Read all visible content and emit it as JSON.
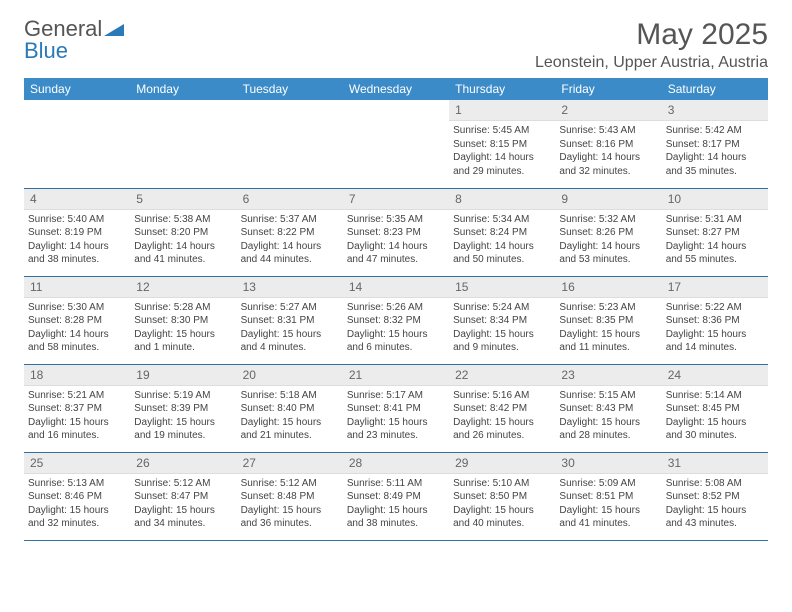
{
  "logo": {
    "word1": "General",
    "word2": "Blue"
  },
  "title": "May 2025",
  "location": "Leonstein, Upper Austria, Austria",
  "colors": {
    "header_bg": "#3b8bc8",
    "header_text": "#ffffff",
    "daynum_bg": "#ececec",
    "rule": "#2f6fa3",
    "text": "#444444",
    "title_text": "#555555"
  },
  "weekdays": [
    "Sunday",
    "Monday",
    "Tuesday",
    "Wednesday",
    "Thursday",
    "Friday",
    "Saturday"
  ],
  "weeks": [
    [
      {
        "n": "",
        "sr": "",
        "ss": "",
        "dl": ""
      },
      {
        "n": "",
        "sr": "",
        "ss": "",
        "dl": ""
      },
      {
        "n": "",
        "sr": "",
        "ss": "",
        "dl": ""
      },
      {
        "n": "",
        "sr": "",
        "ss": "",
        "dl": ""
      },
      {
        "n": "1",
        "sr": "Sunrise: 5:45 AM",
        "ss": "Sunset: 8:15 PM",
        "dl": "Daylight: 14 hours and 29 minutes."
      },
      {
        "n": "2",
        "sr": "Sunrise: 5:43 AM",
        "ss": "Sunset: 8:16 PM",
        "dl": "Daylight: 14 hours and 32 minutes."
      },
      {
        "n": "3",
        "sr": "Sunrise: 5:42 AM",
        "ss": "Sunset: 8:17 PM",
        "dl": "Daylight: 14 hours and 35 minutes."
      }
    ],
    [
      {
        "n": "4",
        "sr": "Sunrise: 5:40 AM",
        "ss": "Sunset: 8:19 PM",
        "dl": "Daylight: 14 hours and 38 minutes."
      },
      {
        "n": "5",
        "sr": "Sunrise: 5:38 AM",
        "ss": "Sunset: 8:20 PM",
        "dl": "Daylight: 14 hours and 41 minutes."
      },
      {
        "n": "6",
        "sr": "Sunrise: 5:37 AM",
        "ss": "Sunset: 8:22 PM",
        "dl": "Daylight: 14 hours and 44 minutes."
      },
      {
        "n": "7",
        "sr": "Sunrise: 5:35 AM",
        "ss": "Sunset: 8:23 PM",
        "dl": "Daylight: 14 hours and 47 minutes."
      },
      {
        "n": "8",
        "sr": "Sunrise: 5:34 AM",
        "ss": "Sunset: 8:24 PM",
        "dl": "Daylight: 14 hours and 50 minutes."
      },
      {
        "n": "9",
        "sr": "Sunrise: 5:32 AM",
        "ss": "Sunset: 8:26 PM",
        "dl": "Daylight: 14 hours and 53 minutes."
      },
      {
        "n": "10",
        "sr": "Sunrise: 5:31 AM",
        "ss": "Sunset: 8:27 PM",
        "dl": "Daylight: 14 hours and 55 minutes."
      }
    ],
    [
      {
        "n": "11",
        "sr": "Sunrise: 5:30 AM",
        "ss": "Sunset: 8:28 PM",
        "dl": "Daylight: 14 hours and 58 minutes."
      },
      {
        "n": "12",
        "sr": "Sunrise: 5:28 AM",
        "ss": "Sunset: 8:30 PM",
        "dl": "Daylight: 15 hours and 1 minute."
      },
      {
        "n": "13",
        "sr": "Sunrise: 5:27 AM",
        "ss": "Sunset: 8:31 PM",
        "dl": "Daylight: 15 hours and 4 minutes."
      },
      {
        "n": "14",
        "sr": "Sunrise: 5:26 AM",
        "ss": "Sunset: 8:32 PM",
        "dl": "Daylight: 15 hours and 6 minutes."
      },
      {
        "n": "15",
        "sr": "Sunrise: 5:24 AM",
        "ss": "Sunset: 8:34 PM",
        "dl": "Daylight: 15 hours and 9 minutes."
      },
      {
        "n": "16",
        "sr": "Sunrise: 5:23 AM",
        "ss": "Sunset: 8:35 PM",
        "dl": "Daylight: 15 hours and 11 minutes."
      },
      {
        "n": "17",
        "sr": "Sunrise: 5:22 AM",
        "ss": "Sunset: 8:36 PM",
        "dl": "Daylight: 15 hours and 14 minutes."
      }
    ],
    [
      {
        "n": "18",
        "sr": "Sunrise: 5:21 AM",
        "ss": "Sunset: 8:37 PM",
        "dl": "Daylight: 15 hours and 16 minutes."
      },
      {
        "n": "19",
        "sr": "Sunrise: 5:19 AM",
        "ss": "Sunset: 8:39 PM",
        "dl": "Daylight: 15 hours and 19 minutes."
      },
      {
        "n": "20",
        "sr": "Sunrise: 5:18 AM",
        "ss": "Sunset: 8:40 PM",
        "dl": "Daylight: 15 hours and 21 minutes."
      },
      {
        "n": "21",
        "sr": "Sunrise: 5:17 AM",
        "ss": "Sunset: 8:41 PM",
        "dl": "Daylight: 15 hours and 23 minutes."
      },
      {
        "n": "22",
        "sr": "Sunrise: 5:16 AM",
        "ss": "Sunset: 8:42 PM",
        "dl": "Daylight: 15 hours and 26 minutes."
      },
      {
        "n": "23",
        "sr": "Sunrise: 5:15 AM",
        "ss": "Sunset: 8:43 PM",
        "dl": "Daylight: 15 hours and 28 minutes."
      },
      {
        "n": "24",
        "sr": "Sunrise: 5:14 AM",
        "ss": "Sunset: 8:45 PM",
        "dl": "Daylight: 15 hours and 30 minutes."
      }
    ],
    [
      {
        "n": "25",
        "sr": "Sunrise: 5:13 AM",
        "ss": "Sunset: 8:46 PM",
        "dl": "Daylight: 15 hours and 32 minutes."
      },
      {
        "n": "26",
        "sr": "Sunrise: 5:12 AM",
        "ss": "Sunset: 8:47 PM",
        "dl": "Daylight: 15 hours and 34 minutes."
      },
      {
        "n": "27",
        "sr": "Sunrise: 5:12 AM",
        "ss": "Sunset: 8:48 PM",
        "dl": "Daylight: 15 hours and 36 minutes."
      },
      {
        "n": "28",
        "sr": "Sunrise: 5:11 AM",
        "ss": "Sunset: 8:49 PM",
        "dl": "Daylight: 15 hours and 38 minutes."
      },
      {
        "n": "29",
        "sr": "Sunrise: 5:10 AM",
        "ss": "Sunset: 8:50 PM",
        "dl": "Daylight: 15 hours and 40 minutes."
      },
      {
        "n": "30",
        "sr": "Sunrise: 5:09 AM",
        "ss": "Sunset: 8:51 PM",
        "dl": "Daylight: 15 hours and 41 minutes."
      },
      {
        "n": "31",
        "sr": "Sunrise: 5:08 AM",
        "ss": "Sunset: 8:52 PM",
        "dl": "Daylight: 15 hours and 43 minutes."
      }
    ]
  ]
}
